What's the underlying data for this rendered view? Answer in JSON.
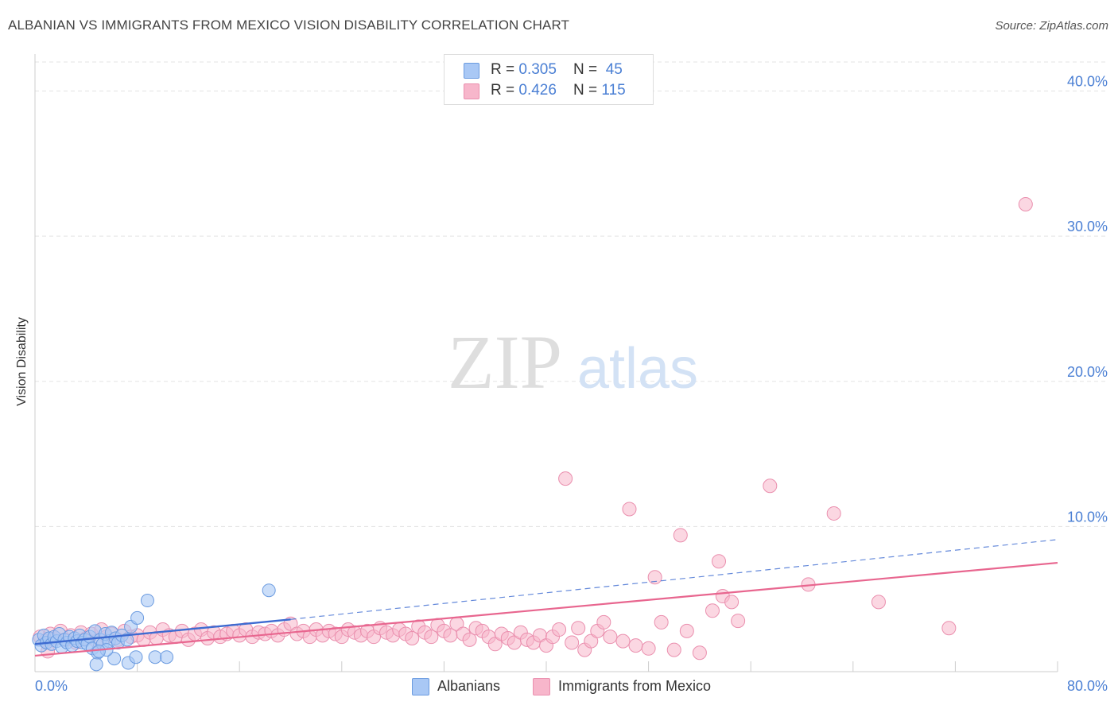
{
  "title": "ALBANIAN VS IMMIGRANTS FROM MEXICO VISION DISABILITY CORRELATION CHART",
  "source": "Source: ZipAtlas.com",
  "watermark": {
    "zip": "ZIP",
    "atlas": "atlas"
  },
  "colors": {
    "blue_fill": "#a9c8f5",
    "blue_stroke": "#6b9be0",
    "blue_line": "#3d6bd1",
    "pink_fill": "#f7b6cb",
    "pink_stroke": "#ea8fae",
    "pink_line": "#e8668f",
    "tick_label": "#4a7fd4",
    "grid": "#e3e3e3"
  },
  "legend_top": [
    {
      "r_label": "R = ",
      "r_value": "0.305",
      "n_label": "N = ",
      "n_value": "45"
    },
    {
      "r_label": "R = ",
      "r_value": "0.426",
      "n_label": "N = ",
      "n_value": "115"
    }
  ],
  "chart_data": {
    "type": "scatter",
    "title": "ALBANIAN VS IMMIGRANTS FROM MEXICO VISION DISABILITY CORRELATION CHART",
    "xlabel": "",
    "ylabel": "Vision Disability",
    "xlim": [
      0,
      80
    ],
    "ylim": [
      0,
      42
    ],
    "x_tick_labels": [
      "0.0%",
      "80.0%"
    ],
    "y_ticks": [
      10,
      20,
      30,
      40
    ],
    "y_tick_labels": [
      "10.0%",
      "20.0%",
      "30.0%",
      "40.0%"
    ],
    "grid": true,
    "legend_position": "bottom",
    "series": [
      {
        "name": "Albanians",
        "color": "#a9c8f5",
        "trend": {
          "x": [
            0,
            20
          ],
          "y": [
            1.9,
            3.6
          ],
          "style": "solid"
        },
        "trend_extension": {
          "x": [
            20,
            80
          ],
          "y": [
            3.6,
            9.1
          ],
          "style": "dashed"
        },
        "points": [
          [
            0.3,
            2.2
          ],
          [
            0.5,
            1.8
          ],
          [
            0.7,
            2.5
          ],
          [
            0.9,
            2.0
          ],
          [
            1.1,
            2.3
          ],
          [
            1.3,
            1.9
          ],
          [
            1.5,
            2.4
          ],
          [
            1.7,
            2.1
          ],
          [
            1.9,
            2.6
          ],
          [
            2.1,
            1.7
          ],
          [
            2.3,
            2.2
          ],
          [
            2.5,
            2.0
          ],
          [
            2.7,
            2.4
          ],
          [
            2.9,
            1.8
          ],
          [
            3.1,
            2.3
          ],
          [
            3.3,
            2.1
          ],
          [
            3.5,
            2.5
          ],
          [
            3.7,
            2.0
          ],
          [
            3.9,
            2.2
          ],
          [
            4.1,
            1.9
          ],
          [
            4.3,
            2.4
          ],
          [
            4.5,
            1.6
          ],
          [
            4.7,
            2.8
          ],
          [
            4.9,
            1.3
          ],
          [
            5.1,
            2.2
          ],
          [
            5.3,
            1.9
          ],
          [
            5.5,
            2.6
          ],
          [
            5.8,
            2.1
          ],
          [
            6.0,
            2.7
          ],
          [
            6.3,
            2.3
          ],
          [
            6.5,
            2.0
          ],
          [
            6.8,
            2.5
          ],
          [
            4.8,
            0.5
          ],
          [
            6.2,
            0.9
          ],
          [
            5.6,
            1.5
          ],
          [
            5.0,
            1.4
          ],
          [
            7.2,
            2.2
          ],
          [
            7.5,
            3.1
          ],
          [
            7.3,
            0.6
          ],
          [
            7.9,
            1.0
          ],
          [
            8.8,
            4.9
          ],
          [
            9.4,
            1.0
          ],
          [
            10.3,
            1.0
          ],
          [
            18.3,
            5.6
          ],
          [
            8.0,
            3.7
          ]
        ]
      },
      {
        "name": "Immigrants from Mexico",
        "color": "#f7b6cb",
        "trend": {
          "x": [
            0,
            80
          ],
          "y": [
            1.1,
            7.5
          ],
          "style": "solid"
        },
        "points": [
          [
            0.4,
            2.4
          ],
          [
            0.8,
            2.1
          ],
          [
            1.2,
            2.6
          ],
          [
            1.6,
            2.3
          ],
          [
            2.0,
            2.8
          ],
          [
            2.4,
            2.2
          ],
          [
            2.8,
            2.5
          ],
          [
            3.2,
            2.0
          ],
          [
            3.6,
            2.7
          ],
          [
            4.0,
            2.3
          ],
          [
            4.4,
            2.6
          ],
          [
            4.8,
            2.1
          ],
          [
            5.2,
            2.9
          ],
          [
            5.6,
            2.4
          ],
          [
            6.0,
            2.6
          ],
          [
            6.5,
            2.2
          ],
          [
            7.0,
            2.8
          ],
          [
            7.5,
            2.4
          ],
          [
            8.0,
            2.5
          ],
          [
            8.5,
            2.2
          ],
          [
            9.0,
            2.7
          ],
          [
            9.5,
            2.3
          ],
          [
            10.0,
            2.9
          ],
          [
            10.5,
            2.5
          ],
          [
            11.0,
            2.4
          ],
          [
            11.5,
            2.8
          ],
          [
            12.0,
            2.2
          ],
          [
            12.5,
            2.6
          ],
          [
            13.0,
            2.9
          ],
          [
            13.5,
            2.3
          ],
          [
            14.0,
            2.7
          ],
          [
            14.5,
            2.4
          ],
          [
            15.0,
            2.6
          ],
          [
            15.5,
            2.8
          ],
          [
            16.0,
            2.5
          ],
          [
            16.5,
            2.9
          ],
          [
            17.0,
            2.4
          ],
          [
            17.5,
            2.7
          ],
          [
            18.0,
            2.6
          ],
          [
            18.5,
            2.8
          ],
          [
            19.0,
            2.5
          ],
          [
            19.5,
            2.9
          ],
          [
            20.0,
            3.3
          ],
          [
            20.5,
            2.6
          ],
          [
            21.0,
            2.8
          ],
          [
            21.5,
            2.4
          ],
          [
            22.0,
            2.9
          ],
          [
            22.5,
            2.5
          ],
          [
            23.0,
            2.8
          ],
          [
            23.5,
            2.6
          ],
          [
            24.0,
            2.4
          ],
          [
            24.5,
            2.9
          ],
          [
            25.0,
            2.7
          ],
          [
            25.5,
            2.5
          ],
          [
            26.0,
            2.8
          ],
          [
            26.5,
            2.4
          ],
          [
            27.0,
            3.0
          ],
          [
            27.5,
            2.7
          ],
          [
            28.0,
            2.5
          ],
          [
            28.5,
            2.9
          ],
          [
            29.0,
            2.6
          ],
          [
            29.5,
            2.3
          ],
          [
            30.0,
            3.1
          ],
          [
            30.5,
            2.7
          ],
          [
            31.0,
            2.4
          ],
          [
            31.5,
            3.2
          ],
          [
            32.0,
            2.8
          ],
          [
            32.5,
            2.5
          ],
          [
            33.0,
            3.3
          ],
          [
            33.5,
            2.6
          ],
          [
            34.0,
            2.2
          ],
          [
            34.5,
            3.0
          ],
          [
            35.0,
            2.8
          ],
          [
            35.5,
            2.4
          ],
          [
            36.0,
            1.9
          ],
          [
            36.5,
            2.6
          ],
          [
            37.0,
            2.3
          ],
          [
            37.5,
            2.0
          ],
          [
            38.0,
            2.7
          ],
          [
            38.5,
            2.2
          ],
          [
            39.0,
            2.0
          ],
          [
            39.5,
            2.5
          ],
          [
            40.0,
            1.8
          ],
          [
            40.5,
            2.4
          ],
          [
            41.0,
            2.9
          ],
          [
            41.5,
            13.3
          ],
          [
            42.0,
            2.0
          ],
          [
            42.5,
            3.0
          ],
          [
            43.0,
            1.5
          ],
          [
            43.5,
            2.1
          ],
          [
            44.0,
            2.8
          ],
          [
            44.5,
            3.4
          ],
          [
            45.0,
            2.4
          ],
          [
            46.0,
            2.1
          ],
          [
            46.5,
            11.2
          ],
          [
            47.0,
            1.8
          ],
          [
            48.0,
            1.6
          ],
          [
            48.5,
            6.5
          ],
          [
            49.0,
            3.4
          ],
          [
            50.0,
            1.5
          ],
          [
            50.5,
            9.4
          ],
          [
            51.0,
            2.8
          ],
          [
            52.0,
            1.3
          ],
          [
            53.0,
            4.2
          ],
          [
            53.5,
            7.6
          ],
          [
            53.8,
            5.2
          ],
          [
            54.5,
            4.8
          ],
          [
            55.0,
            3.5
          ],
          [
            57.5,
            12.8
          ],
          [
            60.5,
            6.0
          ],
          [
            62.5,
            10.9
          ],
          [
            66.0,
            4.8
          ],
          [
            71.5,
            3.0
          ],
          [
            77.5,
            32.2
          ],
          [
            1.0,
            1.4
          ]
        ]
      }
    ]
  }
}
